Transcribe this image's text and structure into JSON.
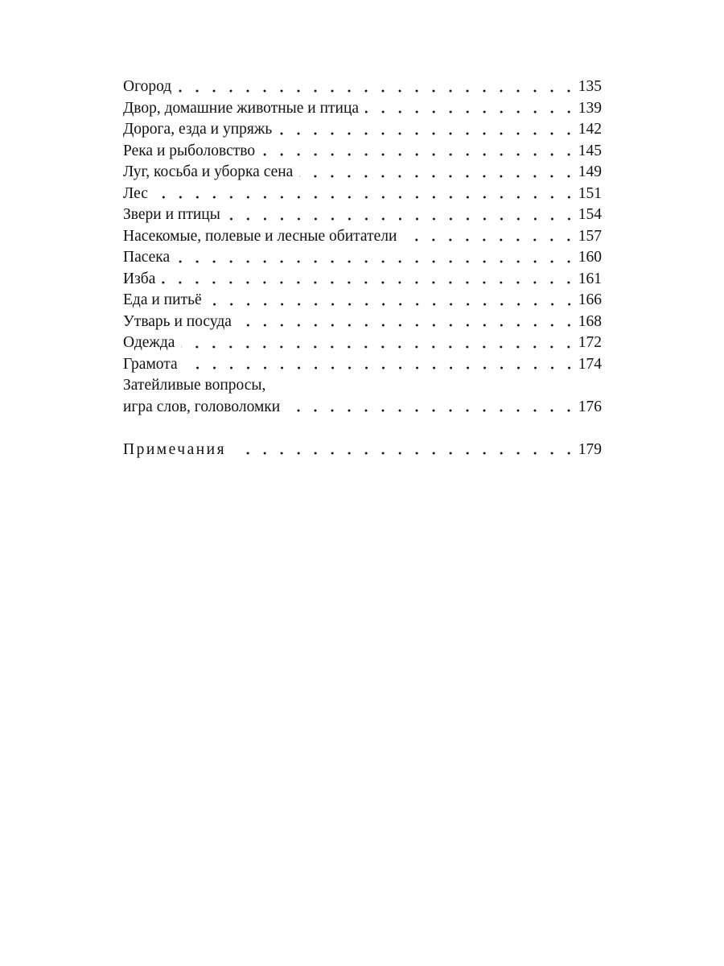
{
  "toc": {
    "entries": [
      {
        "title": "Огород",
        "page": "135"
      },
      {
        "title": "Двор, домашние животные и птица",
        "page": "139"
      },
      {
        "title": "Дорога, езда и упряжь",
        "page": "142"
      },
      {
        "title": "Река и рыболовство",
        "page": "145"
      },
      {
        "title": "Луг, косьба и уборка сена",
        "page": "149"
      },
      {
        "title": "Лес",
        "page": "151"
      },
      {
        "title": "Звери и птицы",
        "page": "154"
      },
      {
        "title": "Насекомые, полевые и лесные обитатели",
        "page": "157"
      },
      {
        "title": "Пасека",
        "page": "160"
      },
      {
        "title": "Изба",
        "page": "161"
      },
      {
        "title": "Еда и питьё",
        "page": "166"
      },
      {
        "title": "Утварь и посуда",
        "page": "168"
      },
      {
        "title": "Одежда",
        "page": "172"
      },
      {
        "title": "Грамота",
        "page": "174"
      },
      {
        "title": "Затейливые вопросы,",
        "title_cont": "игра слов, головоломки",
        "page": "176"
      }
    ],
    "notes": {
      "title": "Примечания",
      "page": "179"
    }
  }
}
